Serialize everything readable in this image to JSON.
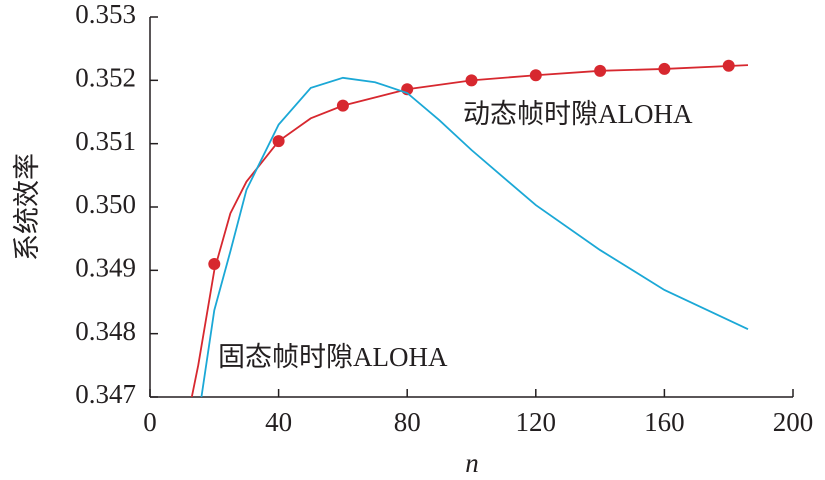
{
  "chart_data": {
    "type": "line",
    "y_label": "系统效率",
    "x_label": "n",
    "xlim": [
      0,
      200
    ],
    "xticks": [
      0,
      40,
      80,
      120,
      160,
      200
    ],
    "ylim": [
      0.347,
      0.353
    ],
    "yticks": [
      0.347,
      0.348,
      0.349,
      {
        "value": 0.35,
        "label": "0.350"
      },
      0.351,
      0.352,
      0.353
    ],
    "series": [
      {
        "name": "动态帧时隙ALOHA",
        "color": "#d7282f",
        "x": [
          13,
          15,
          20,
          25,
          30,
          40,
          50,
          60,
          80,
          100,
          120,
          140,
          160,
          186
        ],
        "values": [
          0.347,
          0.3475,
          0.349,
          0.3499,
          0.3504,
          0.35104,
          0.3514,
          0.3516,
          0.35186,
          0.352,
          0.35208,
          0.35215,
          0.35218,
          0.35224
        ],
        "markers": {
          "x": [
            20,
            40,
            60,
            80,
            100,
            120,
            140,
            160,
            180
          ],
          "values": [
            0.3491,
            0.35104,
            0.3516,
            0.35186,
            0.352,
            0.35208,
            0.35215,
            0.35218,
            0.35223
          ]
        }
      },
      {
        "name": "固态帧时隙ALOHA",
        "color": "#1ba8d6",
        "x": [
          16,
          20,
          25,
          30,
          40,
          50,
          60,
          70,
          80,
          90,
          100,
          120,
          140,
          160,
          186
        ],
        "values": [
          0.347,
          0.34837,
          0.3493,
          0.35027,
          0.3513,
          0.35188,
          0.35204,
          0.35197,
          0.3518,
          0.35137,
          0.3509,
          0.35003,
          0.34932,
          0.34869,
          0.34807
        ]
      }
    ]
  }
}
